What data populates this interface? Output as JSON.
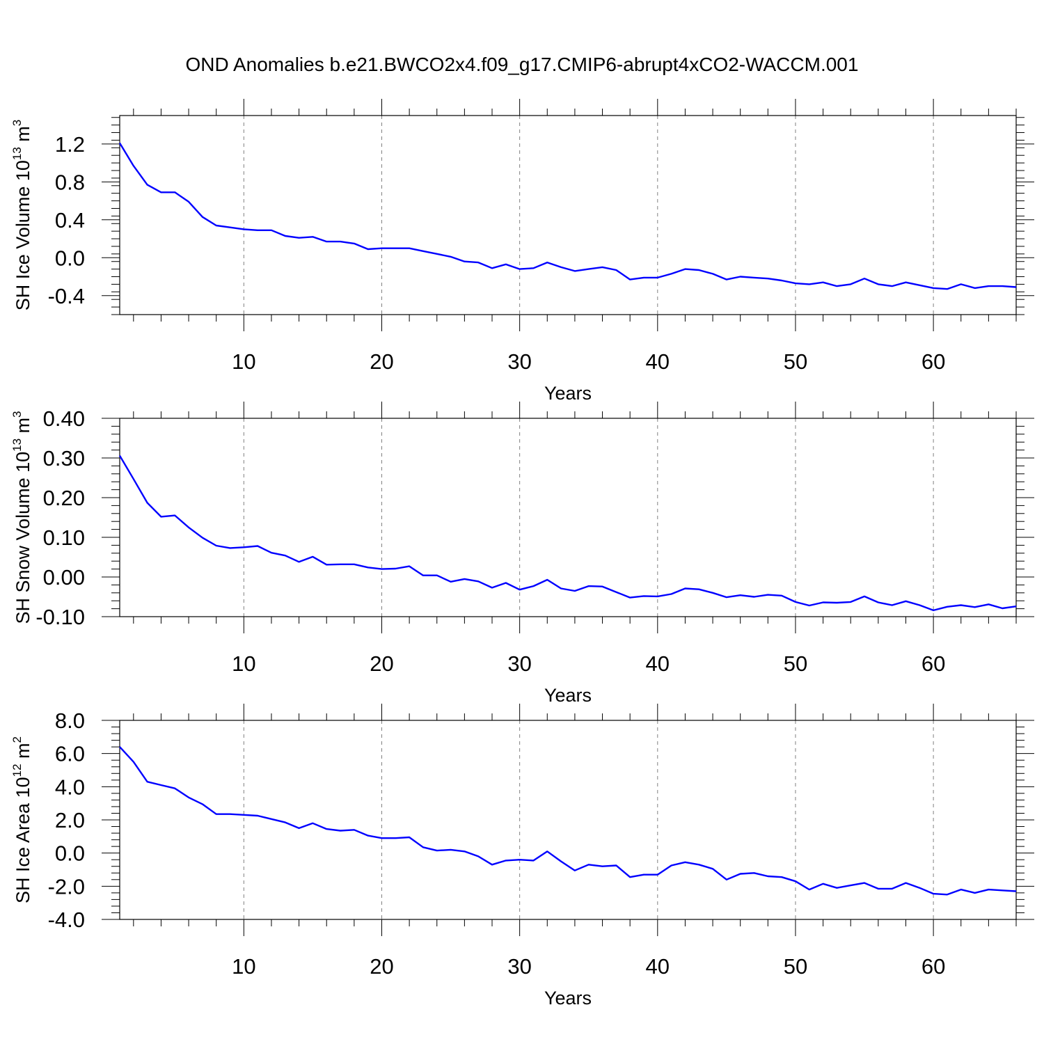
{
  "title": "OND Anomalies b.e21.BWCO2x4.f09_g17.CMIP6-abrupt4xCO2-WACCM.001",
  "colors": {
    "series": "#0000ff",
    "axes": "#000000",
    "grid": "#808080"
  },
  "chart_data": [
    {
      "type": "line",
      "xlabel": "Years",
      "ylabel": {
        "text": "SH Ice Volume 10",
        "exponent": "13",
        "unit": "m",
        "unit_exponent": "3"
      },
      "xlim": [
        1,
        66
      ],
      "ylim": [
        -0.6,
        1.5
      ],
      "xticks": [
        10,
        20,
        30,
        40,
        50,
        60
      ],
      "yticks": [
        -0.4,
        0.0,
        0.4,
        0.8,
        1.2
      ],
      "ytick_labels": [
        "-0.4",
        "0.0",
        "0.4",
        "0.8",
        "1.2"
      ],
      "grid": "vertical dashed at major x ticks",
      "x": [
        1,
        2,
        3,
        4,
        5,
        6,
        7,
        8,
        9,
        10,
        11,
        12,
        13,
        14,
        15,
        16,
        17,
        18,
        19,
        20,
        21,
        22,
        23,
        24,
        25,
        26,
        27,
        28,
        29,
        30,
        31,
        32,
        33,
        34,
        35,
        36,
        37,
        38,
        39,
        40,
        41,
        42,
        43,
        44,
        45,
        46,
        47,
        48,
        49,
        50,
        51,
        52,
        53,
        54,
        55,
        56,
        57,
        58,
        59,
        60,
        61,
        62,
        63,
        64,
        65,
        66
      ],
      "values": [
        1.21,
        0.97,
        0.77,
        0.69,
        0.69,
        0.59,
        0.43,
        0.34,
        0.32,
        0.3,
        0.29,
        0.29,
        0.23,
        0.21,
        0.22,
        0.17,
        0.17,
        0.15,
        0.09,
        0.1,
        0.1,
        0.1,
        0.07,
        0.04,
        0.01,
        -0.04,
        -0.05,
        -0.11,
        -0.07,
        -0.12,
        -0.11,
        -0.05,
        -0.1,
        -0.14,
        -0.12,
        -0.1,
        -0.13,
        -0.23,
        -0.21,
        -0.21,
        -0.17,
        -0.12,
        -0.13,
        -0.17,
        -0.23,
        -0.2,
        -0.21,
        -0.22,
        -0.24,
        -0.27,
        -0.28,
        -0.26,
        -0.3,
        -0.28,
        -0.22,
        -0.28,
        -0.3,
        -0.26,
        -0.29,
        -0.32,
        -0.33,
        -0.28,
        -0.32,
        -0.3,
        -0.3,
        -0.31
      ]
    },
    {
      "type": "line",
      "xlabel": "Years",
      "ylabel": {
        "text": "SH Snow Volume 10",
        "exponent": "13",
        "unit": "m",
        "unit_exponent": "3"
      },
      "xlim": [
        1,
        66
      ],
      "ylim": [
        -0.1,
        0.4
      ],
      "xticks": [
        10,
        20,
        30,
        40,
        50,
        60
      ],
      "yticks": [
        -0.1,
        0.0,
        0.1,
        0.2,
        0.3,
        0.4
      ],
      "ytick_labels": [
        "-0.10",
        "0.00",
        "0.10",
        "0.20",
        "0.30",
        "0.40"
      ],
      "grid": "vertical dashed at major x ticks",
      "x": [
        1,
        2,
        3,
        4,
        5,
        6,
        7,
        8,
        9,
        10,
        11,
        12,
        13,
        14,
        15,
        16,
        17,
        18,
        19,
        20,
        21,
        22,
        23,
        24,
        25,
        26,
        27,
        28,
        29,
        30,
        31,
        32,
        33,
        34,
        35,
        36,
        37,
        38,
        39,
        40,
        41,
        42,
        43,
        44,
        45,
        46,
        47,
        48,
        49,
        50,
        51,
        52,
        53,
        54,
        55,
        56,
        57,
        58,
        59,
        60,
        61,
        62,
        63,
        64,
        65,
        66
      ],
      "values": [
        0.306,
        0.247,
        0.187,
        0.152,
        0.155,
        0.125,
        0.099,
        0.079,
        0.073,
        0.075,
        0.078,
        0.061,
        0.054,
        0.038,
        0.051,
        0.031,
        0.032,
        0.032,
        0.024,
        0.02,
        0.021,
        0.027,
        0.004,
        0.004,
        -0.012,
        -0.005,
        -0.011,
        -0.027,
        -0.015,
        -0.032,
        -0.023,
        -0.007,
        -0.029,
        -0.035,
        -0.023,
        -0.024,
        -0.038,
        -0.052,
        -0.048,
        -0.049,
        -0.043,
        -0.029,
        -0.031,
        -0.04,
        -0.051,
        -0.046,
        -0.05,
        -0.045,
        -0.047,
        -0.063,
        -0.072,
        -0.064,
        -0.065,
        -0.063,
        -0.049,
        -0.064,
        -0.071,
        -0.061,
        -0.071,
        -0.084,
        -0.075,
        -0.071,
        -0.076,
        -0.069,
        -0.079,
        -0.074
      ]
    },
    {
      "type": "line",
      "xlabel": "Years",
      "ylabel": {
        "text": "SH Ice Area 10",
        "exponent": "12",
        "unit": "m",
        "unit_exponent": "2"
      },
      "xlim": [
        1,
        66
      ],
      "ylim": [
        -4.0,
        8.0
      ],
      "xticks": [
        10,
        20,
        30,
        40,
        50,
        60
      ],
      "yticks": [
        -4.0,
        -2.0,
        0.0,
        2.0,
        4.0,
        6.0,
        8.0
      ],
      "ytick_labels": [
        "-4.0",
        "-2.0",
        "0.0",
        "2.0",
        "4.0",
        "6.0",
        "8.0"
      ],
      "grid": "vertical dashed at major x ticks",
      "x": [
        1,
        2,
        3,
        4,
        5,
        6,
        7,
        8,
        9,
        10,
        11,
        12,
        13,
        14,
        15,
        16,
        17,
        18,
        19,
        20,
        21,
        22,
        23,
        24,
        25,
        26,
        27,
        28,
        29,
        30,
        31,
        32,
        33,
        34,
        35,
        36,
        37,
        38,
        39,
        40,
        41,
        42,
        43,
        44,
        45,
        46,
        47,
        48,
        49,
        50,
        51,
        52,
        53,
        54,
        55,
        56,
        57,
        58,
        59,
        60,
        61,
        62,
        63,
        64,
        65,
        66
      ],
      "values": [
        6.4,
        5.5,
        4.3,
        4.1,
        3.9,
        3.35,
        2.95,
        2.35,
        2.35,
        2.3,
        2.25,
        2.05,
        1.85,
        1.5,
        1.8,
        1.45,
        1.35,
        1.4,
        1.05,
        0.9,
        0.9,
        0.95,
        0.35,
        0.15,
        0.2,
        0.1,
        -0.2,
        -0.7,
        -0.45,
        -0.4,
        -0.45,
        0.1,
        -0.5,
        -1.05,
        -0.7,
        -0.8,
        -0.75,
        -1.45,
        -1.3,
        -1.3,
        -0.75,
        -0.55,
        -0.7,
        -0.95,
        -1.6,
        -1.25,
        -1.2,
        -1.4,
        -1.45,
        -1.7,
        -2.2,
        -1.85,
        -2.1,
        -1.95,
        -1.8,
        -2.15,
        -2.15,
        -1.8,
        -2.1,
        -2.45,
        -2.5,
        -2.2,
        -2.4,
        -2.2,
        -2.25,
        -2.3
      ]
    }
  ]
}
